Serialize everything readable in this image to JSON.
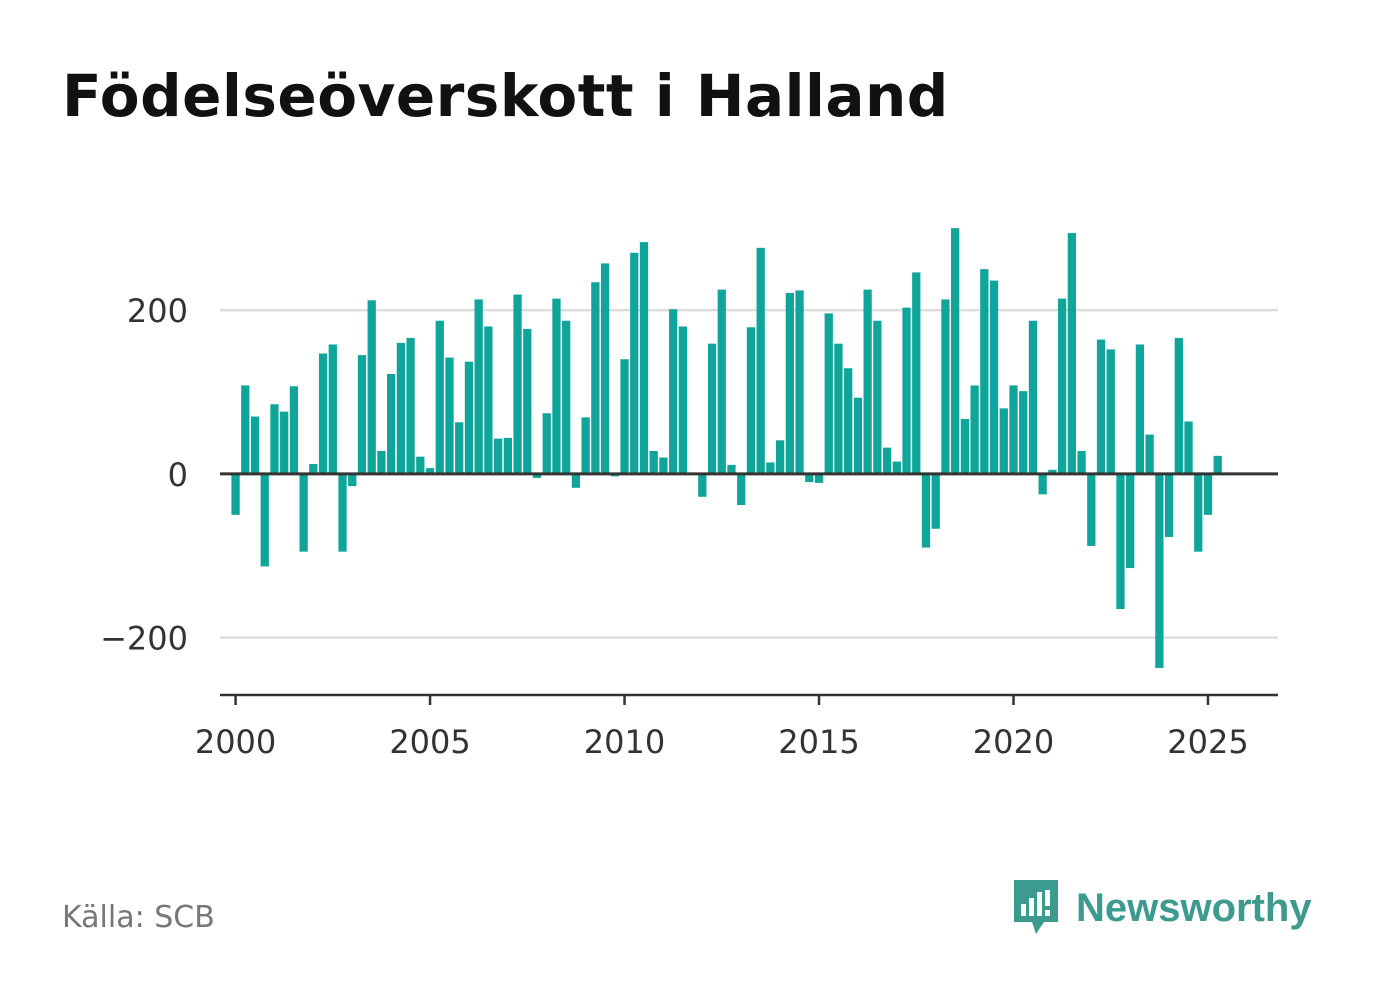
{
  "title": "Födelseöverskott i Halland",
  "source": "Källa: SCB",
  "brand": {
    "name": "Newsworthy",
    "icon": "newsworthy-logo-icon",
    "color": "#3d9a8f"
  },
  "colors": {
    "bar": "#0fa59a",
    "grid": "#dddddd",
    "axis": "#333333",
    "text": "#333333"
  },
  "chart_data": {
    "type": "bar",
    "title": "Födelseöverskott i Halland",
    "xlabel": "",
    "ylabel": "",
    "ylim": [
      -270,
      310
    ],
    "xlim": [
      1999.6,
      2026.8
    ],
    "grid": true,
    "yticks": [
      -200,
      0,
      200
    ],
    "ytick_labels": [
      "−200",
      "0",
      "200"
    ],
    "xticks": [
      2000,
      2005,
      2010,
      2015,
      2020,
      2025
    ],
    "xtick_labels": [
      "2000",
      "2005",
      "2010",
      "2015",
      "2020",
      "2025"
    ],
    "frequency": "quarterly",
    "start": "2000 Q1",
    "values": [
      -50,
      108,
      70,
      -113,
      85,
      76,
      107,
      -95,
      12,
      147,
      158,
      -95,
      -15,
      145,
      212,
      28,
      122,
      160,
      166,
      21,
      7,
      187,
      142,
      63,
      137,
      213,
      180,
      43,
      44,
      219,
      177,
      -5,
      74,
      214,
      187,
      -17,
      69,
      234,
      257,
      -3,
      140,
      270,
      283,
      28,
      20,
      201,
      180,
      0,
      -28,
      159,
      225,
      11,
      -38,
      179,
      276,
      14,
      41,
      221,
      224,
      -10,
      -11,
      196,
      159,
      129,
      93,
      225,
      187,
      32,
      15,
      203,
      246,
      -90,
      -67,
      213,
      300,
      67,
      108,
      250,
      236,
      80,
      108,
      101,
      187,
      -25,
      5,
      214,
      294,
      28,
      -88,
      164,
      152,
      -165,
      -115,
      158,
      48,
      -237,
      -77,
      166,
      64,
      -95,
      -50,
      22
    ]
  }
}
